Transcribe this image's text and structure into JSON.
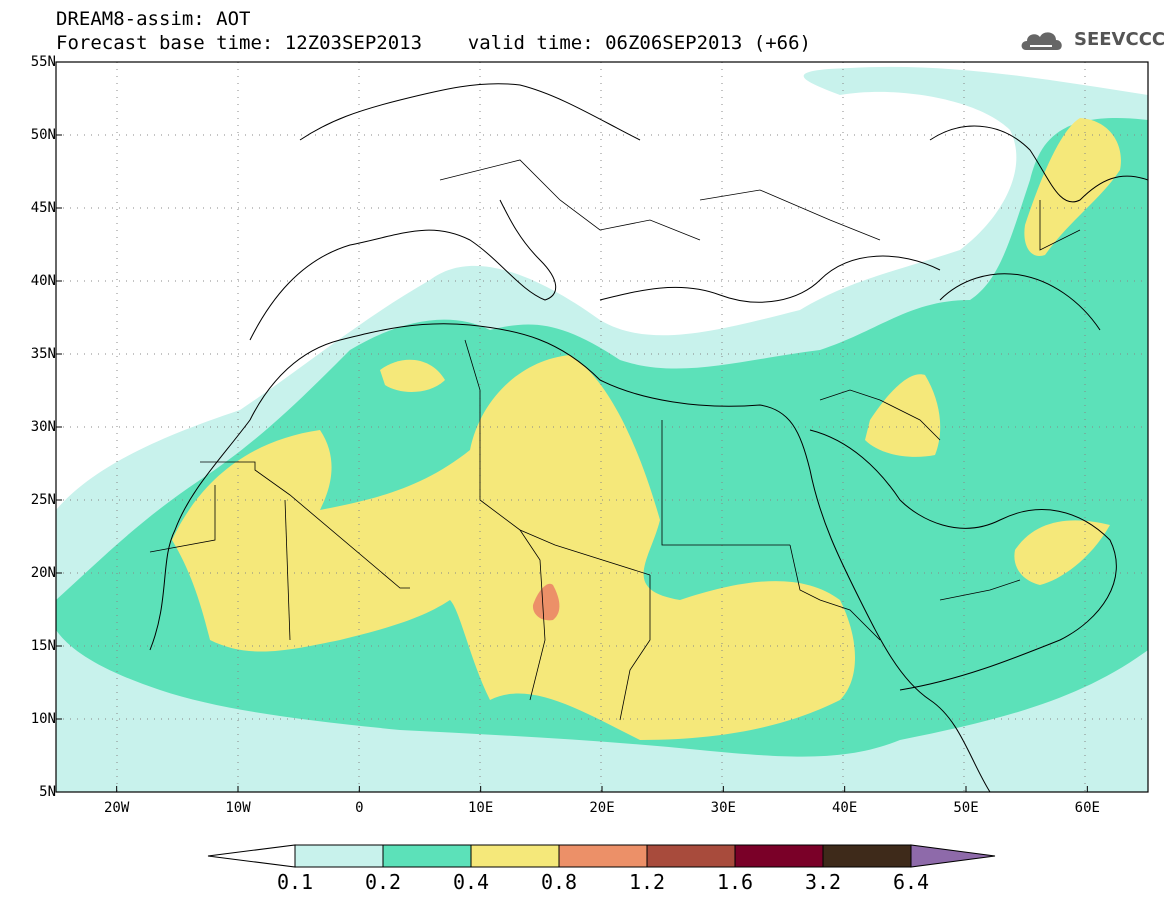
{
  "header": {
    "title_line1": "DREAM8-assim: AOT",
    "title_line2": "Forecast base time: 12Z03SEP2013    valid time: 06Z06SEP2013 (+66)",
    "logo_text": "SEEVCCC",
    "logo_icon": "cloud-icon"
  },
  "map": {
    "lon_range": [
      -25,
      65
    ],
    "lat_range": [
      5,
      55
    ],
    "lat_labels": [
      "55N",
      "50N",
      "45N",
      "40N",
      "35N",
      "30N",
      "25N",
      "20N",
      "15N",
      "10N",
      "5N"
    ],
    "lat_values": [
      55,
      50,
      45,
      40,
      35,
      30,
      25,
      20,
      15,
      10,
      5
    ],
    "lon_labels": [
      "20W",
      "10W",
      "0",
      "10E",
      "20E",
      "30E",
      "40E",
      "50E",
      "60E"
    ],
    "lon_values": [
      -20,
      -10,
      0,
      10,
      20,
      30,
      40,
      50,
      60
    ],
    "grid": "dotted"
  },
  "legend": {
    "levels": [
      "0.1",
      "0.2",
      "0.4",
      "0.8",
      "1.2",
      "1.6",
      "3.2",
      "6.4"
    ],
    "colors": [
      "#ffffff",
      "#c8f2ec",
      "#5ce1b9",
      "#f5e87a",
      "#ec9068",
      "#a84b3c",
      "#7a0028",
      "#3e2a1a",
      "#8e6aaa"
    ]
  }
}
